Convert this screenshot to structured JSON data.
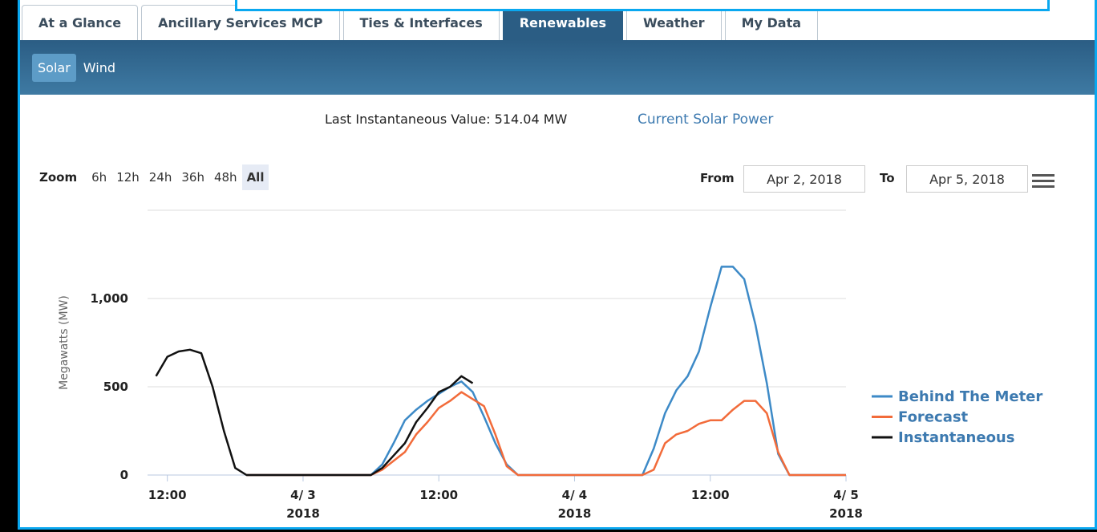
{
  "tabs": [
    "At a Glance",
    "Ancillary Services MCP",
    "Ties & Interfaces",
    "Renewables",
    "Weather",
    "My Data"
  ],
  "active_tab": "Renewables",
  "subtabs": [
    "Solar",
    "Wind"
  ],
  "active_subtab": "Solar",
  "info": {
    "last_value": "Last Instantaneous Value: 514.04 MW",
    "link": "Current Solar Power"
  },
  "zoom": {
    "label": "Zoom",
    "buttons": [
      "6h",
      "12h",
      "24h",
      "36h",
      "48h",
      "All"
    ],
    "active": "All"
  },
  "range": {
    "from_label": "From",
    "from": "Apr 2, 2018",
    "to_label": "To",
    "to": "Apr 5, 2018"
  },
  "chart_data": {
    "type": "line",
    "ylabel": "Megawatts (MW)",
    "x": [
      "2018-04-02T11:00",
      "2018-04-02T12:00",
      "2018-04-02T13:00",
      "2018-04-02T14:00",
      "2018-04-02T15:00",
      "2018-04-02T16:00",
      "2018-04-02T17:00",
      "2018-04-02T18:00",
      "2018-04-02T19:00",
      "2018-04-02T20:00",
      "2018-04-02T21:00",
      "2018-04-02T22:00",
      "2018-04-02T23:00",
      "2018-04-03T00:00",
      "2018-04-03T01:00",
      "2018-04-03T02:00",
      "2018-04-03T03:00",
      "2018-04-03T04:00",
      "2018-04-03T05:00",
      "2018-04-03T06:00",
      "2018-04-03T07:00",
      "2018-04-03T08:00",
      "2018-04-03T09:00",
      "2018-04-03T10:00",
      "2018-04-03T11:00",
      "2018-04-03T12:00",
      "2018-04-03T13:00",
      "2018-04-03T14:00",
      "2018-04-03T15:00",
      "2018-04-03T16:00",
      "2018-04-03T17:00",
      "2018-04-03T18:00",
      "2018-04-03T19:00",
      "2018-04-03T20:00",
      "2018-04-03T21:00",
      "2018-04-03T22:00",
      "2018-04-03T23:00",
      "2018-04-04T00:00",
      "2018-04-04T01:00",
      "2018-04-04T02:00",
      "2018-04-04T03:00",
      "2018-04-04T04:00",
      "2018-04-04T05:00",
      "2018-04-04T06:00",
      "2018-04-04T07:00",
      "2018-04-04T08:00",
      "2018-04-04T09:00",
      "2018-04-04T10:00",
      "2018-04-04T11:00",
      "2018-04-04T12:00",
      "2018-04-04T13:00",
      "2018-04-04T14:00",
      "2018-04-04T15:00",
      "2018-04-04T16:00",
      "2018-04-04T17:00",
      "2018-04-04T18:00",
      "2018-04-04T19:00",
      "2018-04-04T20:00",
      "2018-04-04T21:00",
      "2018-04-04T22:00",
      "2018-04-04T23:00",
      "2018-04-05T00:00"
    ],
    "series": [
      {
        "name": "Behind The Meter",
        "color": "#3d8ac7",
        "values": [
          null,
          null,
          null,
          null,
          null,
          null,
          null,
          null,
          0,
          0,
          0,
          0,
          0,
          0,
          0,
          0,
          0,
          0,
          0,
          0,
          60,
          180,
          310,
          370,
          420,
          460,
          500,
          530,
          470,
          330,
          180,
          60,
          0,
          0,
          0,
          0,
          0,
          0,
          0,
          0,
          0,
          0,
          0,
          0,
          150,
          350,
          480,
          560,
          700,
          950,
          1180,
          1180,
          1110,
          850,
          520,
          120,
          0,
          0,
          0,
          0,
          0,
          0
        ]
      },
      {
        "name": "Forecast",
        "color": "#f26b3a",
        "values": [
          null,
          null,
          null,
          null,
          null,
          null,
          null,
          null,
          0,
          0,
          0,
          0,
          0,
          0,
          0,
          0,
          0,
          0,
          0,
          0,
          30,
          80,
          130,
          230,
          300,
          380,
          420,
          470,
          430,
          390,
          230,
          50,
          0,
          0,
          0,
          0,
          0,
          0,
          0,
          0,
          0,
          0,
          0,
          0,
          30,
          180,
          230,
          250,
          290,
          310,
          310,
          370,
          420,
          420,
          350,
          130,
          0,
          0,
          0,
          0,
          0,
          0
        ]
      },
      {
        "name": "Instantaneous",
        "color": "#111111",
        "values": [
          560,
          670,
          700,
          710,
          690,
          500,
          250,
          40,
          0,
          0,
          0,
          0,
          0,
          0,
          0,
          0,
          0,
          0,
          0,
          0,
          40,
          110,
          180,
          300,
          380,
          470,
          500,
          560,
          520,
          null,
          null,
          null,
          null,
          null,
          null,
          null,
          null,
          null,
          null,
          null,
          null,
          null,
          null,
          null,
          null,
          null,
          null,
          null,
          null,
          null,
          null,
          null,
          null,
          null,
          null,
          null,
          null,
          null,
          null,
          null,
          null,
          null
        ]
      }
    ],
    "xlim": [
      "2018-04-02T10:15",
      "2018-04-05T00:00"
    ],
    "xticks": [
      {
        "value": "2018-04-02T12:00",
        "label": "12:00"
      },
      {
        "value": "2018-04-03T00:00",
        "label": "4/ 3",
        "year": "2018"
      },
      {
        "value": "2018-04-03T12:00",
        "label": "12:00"
      },
      {
        "value": "2018-04-04T00:00",
        "label": "4/ 4",
        "year": "2018"
      },
      {
        "value": "2018-04-04T12:00",
        "label": "12:00"
      },
      {
        "value": "2018-04-05T00:00",
        "label": "4/ 5",
        "year": "2018"
      }
    ],
    "ylim": [
      0,
      1500
    ],
    "yticks": [
      0,
      500,
      {
        "value": 1000,
        "label": "1,000"
      },
      1500
    ],
    "grid": true,
    "legend": "right"
  }
}
